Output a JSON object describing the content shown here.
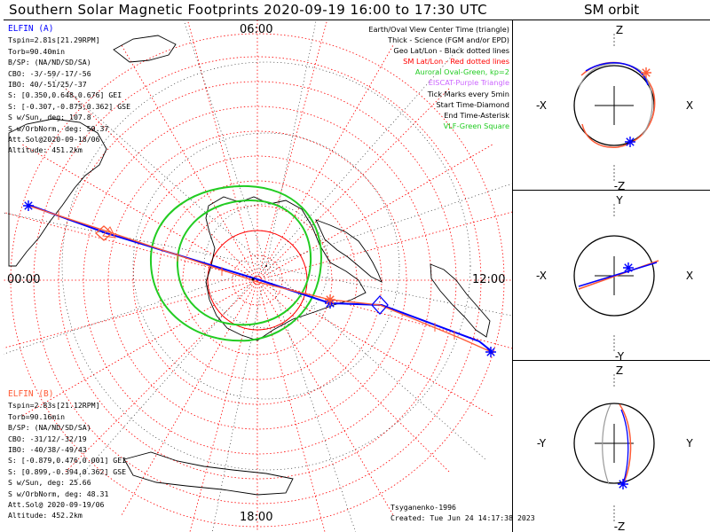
{
  "title": "Southern Solar Magnetic Footprints 2020-09-19 16:00 to 17:30 UTC",
  "orbit_title": "SM orbit",
  "mlt_labels": {
    "top": "06:00",
    "left": "00:00",
    "right": "12:00",
    "bottom": "18:00"
  },
  "elfin_a": {
    "header": "ELFIN (A)",
    "color": "#0000ff",
    "lines": [
      "Tspin=2.81s[21.29RPM]",
      "Torb=90.40min",
      "B/SP: (NA/ND/SD/SA)",
      "CBO: -3/-59/-17/-56",
      "IBO: 40/-51/25/-37",
      "S: [0.350,0.648,0.676] GEI",
      "S: [-0.307,-0.875,0.362] GSE",
      "S w/Sun, deg: 107.8",
      "S w/OrbNorm, deg: 59.37",
      "Att.Sol@2020-09-18/06",
      "Altitude: 451.2km"
    ]
  },
  "elfin_b": {
    "header": "ELFIN (B)",
    "color": "#ff5a36",
    "lines": [
      "Tspin=2.83s[21.12RPM]",
      "Torb=90.16min",
      "B/SP: (NA/ND/SD/SA)",
      "CBO: -31/12/-32/19",
      "IBO: -40/38/-49/43",
      "S: [-0.879,0.476,0.001] GEI",
      "S: [0.899,-0.394,0.362] GSE",
      "S w/Sun, deg: 25.66",
      "S w/OrbNorm, deg: 48.31",
      "Att.Sol@ 2020-09-19/06",
      "Altitude: 452.2km"
    ]
  },
  "legend": [
    {
      "text": "Earth/Oval View Center Time (triangle)",
      "color": "#000000"
    },
    {
      "text": "Thick - Science (FGM and/or EPD)",
      "color": "#000000"
    },
    {
      "text": "Geo Lat/Lon - Black dotted lines",
      "color": "#000000"
    },
    {
      "text": "SM Lat/Lon - Red dotted lines",
      "color": "#ff0000"
    },
    {
      "text": "Auroral Oval-Green, kp=2",
      "color": "#22cc22"
    },
    {
      "text": "EISCAT-Purple Triangle",
      "color": "#cc66ff"
    },
    {
      "text": "Tick Marks every 5min",
      "color": "#000000"
    },
    {
      "text": "Start Time-Diamond",
      "color": "#000000"
    },
    {
      "text": "End Time-Asterisk",
      "color": "#000000"
    },
    {
      "text": "VLF-Green Square",
      "color": "#22cc22"
    }
  ],
  "credit": [
    "Tsyganenko-1996",
    "Created: Tue Jun 24 14:17:38 2023"
  ],
  "orbit_panels": [
    {
      "top": "Z",
      "bottom": "-Z",
      "left": "-X",
      "right": "X"
    },
    {
      "top": "Y",
      "bottom": "-Y",
      "left": "-X",
      "right": "X"
    },
    {
      "top": "Z",
      "bottom": "-Z",
      "left": "-Y",
      "right": "Y"
    }
  ],
  "colors": {
    "sat_a": "#0000ff",
    "sat_b": "#ff5a36",
    "oval": "#22cc22",
    "grid_sm": "#ff0000",
    "coast": "#000000"
  }
}
